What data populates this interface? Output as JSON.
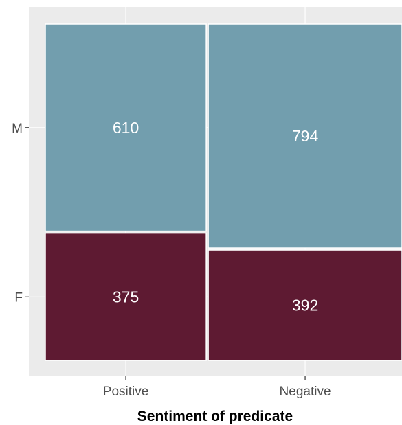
{
  "chart_data": {
    "type": "mosaic",
    "title": "",
    "xlabel": "Sentiment of predicate",
    "ylabel": "",
    "categories": [
      "Positive",
      "Negative"
    ],
    "series": [
      {
        "name": "F",
        "values": [
          375,
          392
        ],
        "color": "#5E1A32"
      },
      {
        "name": "M",
        "values": [
          610,
          794
        ],
        "color": "#729EAE"
      }
    ],
    "y_ticks": [
      "F",
      "M"
    ],
    "grid": true,
    "legend": "none"
  },
  "colors": {
    "panel_background": "#EBEBEB",
    "gridline": "#FFFFFF",
    "tile_border": "#FFFFFF",
    "label_text": "#FFFFFF"
  }
}
